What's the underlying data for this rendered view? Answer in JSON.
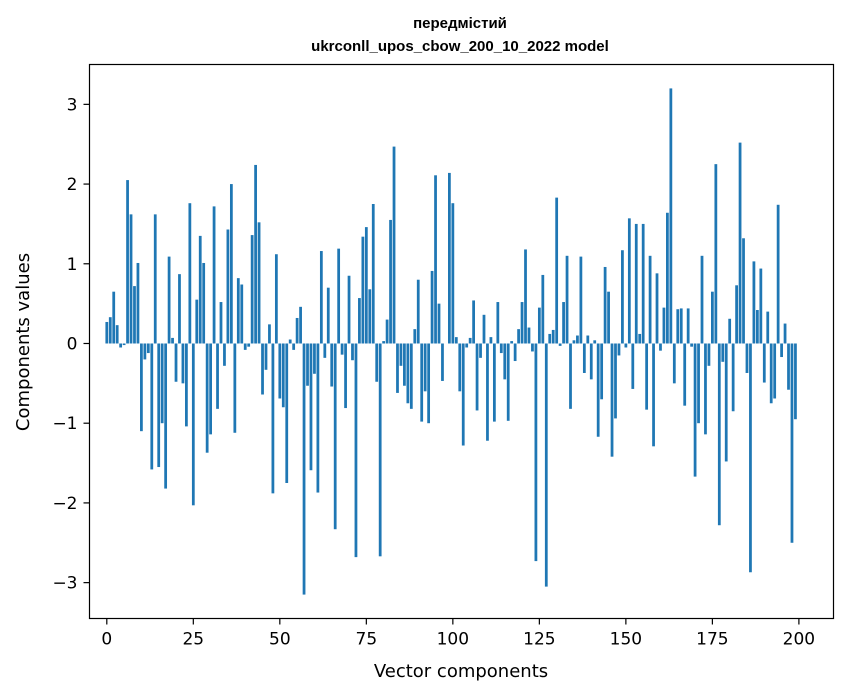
{
  "chart_data": {
    "type": "bar",
    "title": "передмістий",
    "subtitle": "ukrconll_upos_cbow_200_10_2022 model",
    "xlabel": "Vector components",
    "ylabel": "Components values",
    "xlim": [
      -5,
      210
    ],
    "ylim": [
      -3.45,
      3.5
    ],
    "xticks": [
      0,
      25,
      50,
      75,
      100,
      125,
      150,
      175,
      200
    ],
    "yticks": [
      -3,
      -2,
      -1,
      0,
      1,
      2,
      3
    ],
    "xtick_labels": [
      "0",
      "25",
      "50",
      "75",
      "100",
      "125",
      "150",
      "175",
      "200"
    ],
    "ytick_labels": [
      "−3",
      "−2",
      "−1",
      "0",
      "1",
      "2",
      "3"
    ],
    "grid": false,
    "bar_color": "#1f77b4",
    "x": [
      0,
      1,
      2,
      3,
      4,
      5,
      6,
      7,
      8,
      9,
      10,
      11,
      12,
      13,
      14,
      15,
      16,
      17,
      18,
      19,
      20,
      21,
      22,
      23,
      24,
      25,
      26,
      27,
      28,
      29,
      30,
      31,
      32,
      33,
      34,
      35,
      36,
      37,
      38,
      39,
      40,
      41,
      42,
      43,
      44,
      45,
      46,
      47,
      48,
      49,
      50,
      51,
      52,
      53,
      54,
      55,
      56,
      57,
      58,
      59,
      60,
      61,
      62,
      63,
      64,
      65,
      66,
      67,
      68,
      69,
      70,
      71,
      72,
      73,
      74,
      75,
      76,
      77,
      78,
      79,
      80,
      81,
      82,
      83,
      84,
      85,
      86,
      87,
      88,
      89,
      90,
      91,
      92,
      93,
      94,
      95,
      96,
      97,
      98,
      99,
      100,
      101,
      102,
      103,
      104,
      105,
      106,
      107,
      108,
      109,
      110,
      111,
      112,
      113,
      114,
      115,
      116,
      117,
      118,
      119,
      120,
      121,
      122,
      123,
      124,
      125,
      126,
      127,
      128,
      129,
      130,
      131,
      132,
      133,
      134,
      135,
      136,
      137,
      138,
      139,
      140,
      141,
      142,
      143,
      144,
      145,
      146,
      147,
      148,
      149,
      150,
      151,
      152,
      153,
      154,
      155,
      156,
      157,
      158,
      159,
      160,
      161,
      162,
      163,
      164,
      165,
      166,
      167,
      168,
      169,
      170,
      171,
      172,
      173,
      174,
      175,
      176,
      177,
      178,
      179,
      180,
      181,
      182,
      183,
      184,
      185,
      186,
      187,
      188,
      189,
      190,
      191,
      192,
      193,
      194,
      195,
      196,
      197,
      198,
      199
    ],
    "values": [
      0.27,
      0.33,
      0.65,
      0.23,
      -0.05,
      -0.02,
      2.05,
      1.62,
      0.72,
      1.01,
      -1.1,
      -0.2,
      -0.12,
      -1.58,
      1.62,
      -1.55,
      -1.0,
      -1.82,
      1.09,
      0.07,
      -0.48,
      0.87,
      -0.5,
      -1.04,
      1.76,
      -2.03,
      0.55,
      1.35,
      1.01,
      -1.37,
      -1.14,
      1.72,
      -0.82,
      0.52,
      -0.28,
      1.43,
      2.0,
      -1.12,
      0.82,
      0.74,
      -0.08,
      -0.04,
      1.36,
      2.24,
      1.52,
      -0.64,
      -0.33,
      0.24,
      -1.88,
      1.12,
      -0.69,
      -0.8,
      -1.75,
      0.05,
      -0.08,
      0.32,
      0.46,
      -3.15,
      -0.53,
      -1.59,
      -0.38,
      -1.87,
      1.16,
      -0.18,
      0.7,
      -0.54,
      -2.33,
      1.19,
      -0.14,
      -0.81,
      0.85,
      -0.21,
      -2.68,
      0.57,
      1.34,
      1.46,
      0.68,
      1.75,
      -0.48,
      -2.67,
      0.03,
      0.3,
      1.55,
      2.47,
      -0.62,
      -0.28,
      -0.53,
      -0.75,
      -0.82,
      0.18,
      0.8,
      -0.98,
      -0.6,
      -1.0,
      0.91,
      2.11,
      0.5,
      -0.47,
      0.0,
      2.14,
      1.76,
      0.08,
      -0.6,
      -1.28,
      -0.05,
      0.07,
      0.54,
      -0.84,
      -0.18,
      0.36,
      -1.22,
      0.08,
      -0.98,
      0.52,
      -0.12,
      -0.45,
      -0.97,
      0.03,
      -0.22,
      0.18,
      0.52,
      1.18,
      0.2,
      -0.1,
      -2.73,
      0.45,
      0.86,
      -3.05,
      0.12,
      0.17,
      1.83,
      -0.03,
      0.52,
      1.1,
      -0.82,
      0.04,
      0.1,
      1.09,
      -0.37,
      0.1,
      -0.45,
      0.04,
      -1.17,
      -0.7,
      0.96,
      0.65,
      -1.42,
      -0.94,
      -0.15,
      1.17,
      -0.05,
      1.57,
      -0.57,
      1.5,
      0.12,
      1.5,
      -0.83,
      1.1,
      -1.29,
      0.88,
      -0.09,
      0.45,
      1.64,
      3.2,
      -0.5,
      0.43,
      0.44,
      -0.78,
      0.44,
      -0.04,
      -1.67,
      -1.0,
      1.1,
      -1.14,
      -0.28,
      0.65,
      2.25,
      -2.28,
      -0.23,
      -1.48,
      0.31,
      -0.85,
      0.73,
      2.52,
      1.32,
      -0.37,
      -2.87,
      1.03,
      0.42,
      0.94,
      -0.49,
      0.4,
      -0.75,
      -0.69,
      1.74,
      -0.17,
      0.25,
      -0.58,
      -2.5,
      -0.95
    ]
  }
}
